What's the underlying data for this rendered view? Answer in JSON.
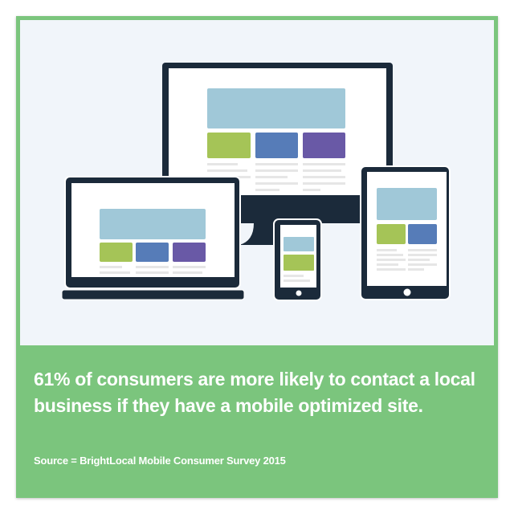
{
  "headline": "61% of consumers are more likely to contact a local business if they have a mobile optimized site.",
  "source": "Source = BrightLocal Mobile Consumer Survey 2015",
  "illustration": {
    "devices": [
      "desktop-monitor",
      "laptop",
      "smartphone",
      "tablet"
    ]
  },
  "colors": {
    "frame_green": "#7bc57d",
    "background": "#f1f5fa",
    "device_dark": "#1b2a3a",
    "banner_blue": "#a0c8d8",
    "tile_green": "#a5c457",
    "tile_blue": "#567cb8",
    "tile_purple": "#6959a6",
    "text_line_gray": "#e6e6e6"
  }
}
